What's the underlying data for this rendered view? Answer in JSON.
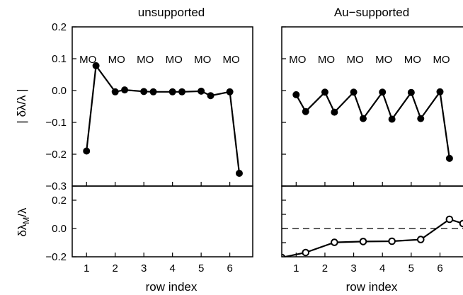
{
  "panel_titles": {
    "left": "unsupported",
    "right": "Au−supported"
  },
  "xlabel": "row index",
  "ylabel_top": "| δλ/λ |",
  "ylabel_bottom_main": "δλ",
  "ylabel_bottom_sub": "M",
  "ylabel_bottom_tail": "/λ",
  "mo_label": "MO",
  "chart_data": [
    {
      "type": "line",
      "title": "unsupported",
      "xlabel": "",
      "ylabel": "| δλ/λ |",
      "xlim": [
        0.5,
        6.8
      ],
      "ylim": [
        -0.3,
        0.2
      ],
      "xticks": [
        "1",
        "2",
        "3",
        "4",
        "5",
        "6"
      ],
      "yticks": [
        "−0.3",
        "−0.2",
        "−0.1",
        "0.0",
        "0.1",
        "0.2"
      ],
      "annotations": [
        "MO",
        "MO",
        "MO",
        "MO",
        "MO",
        "MO"
      ],
      "series": [
        {
          "marker": "filled-circle",
          "x": [
            1.0,
            1.33,
            2.0,
            2.33,
            3.0,
            3.33,
            4.0,
            4.33,
            5.0,
            5.33,
            6.0,
            6.33
          ],
          "y": [
            -0.19,
            0.078,
            -0.004,
            0.002,
            -0.003,
            -0.004,
            -0.004,
            -0.004,
            -0.002,
            -0.016,
            -0.004,
            -0.26
          ]
        }
      ]
    },
    {
      "type": "line",
      "title": "Au−supported",
      "xlabel": "",
      "ylabel": "",
      "xlim": [
        0.5,
        6.8
      ],
      "ylim": [
        -0.3,
        0.2
      ],
      "xticks": [
        "1",
        "2",
        "3",
        "4",
        "5",
        "6"
      ],
      "annotations": [
        "MO",
        "MO",
        "MO",
        "MO",
        "MO",
        "MO"
      ],
      "series": [
        {
          "marker": "filled-circle",
          "x": [
            1.0,
            1.33,
            2.0,
            2.33,
            3.0,
            3.33,
            4.0,
            4.33,
            5.0,
            5.33,
            6.0,
            6.33
          ],
          "y": [
            -0.013,
            -0.066,
            -0.005,
            -0.068,
            -0.005,
            -0.088,
            -0.005,
            -0.09,
            -0.006,
            -0.088,
            -0.004,
            -0.213
          ]
        }
      ]
    },
    {
      "type": "line",
      "title": "",
      "xlabel": "row index",
      "ylabel": "δλM/λ",
      "xlim": [
        0.5,
        6.8
      ],
      "ylim": [
        -0.2,
        0.3
      ],
      "xticks": [
        "1",
        "2",
        "3",
        "4",
        "5",
        "6"
      ],
      "yticks": [
        "−0.2",
        "0.0",
        "0.2"
      ],
      "series": []
    },
    {
      "type": "line",
      "title": "",
      "xlabel": "row index",
      "ylabel": "",
      "xlim": [
        0.5,
        6.8
      ],
      "ylim": [
        -0.2,
        0.3
      ],
      "xticks": [
        "1",
        "2",
        "3",
        "4",
        "5",
        "6"
      ],
      "reference_line": {
        "y": 0.0,
        "style": "dashed"
      },
      "series": [
        {
          "marker": "open-circle",
          "x": [
            0.5,
            1.33,
            2.33,
            3.33,
            4.33,
            5.33,
            6.33,
            6.8
          ],
          "y": [
            -0.205,
            -0.17,
            -0.098,
            -0.092,
            -0.09,
            -0.078,
            0.065,
            0.035
          ]
        }
      ]
    }
  ]
}
